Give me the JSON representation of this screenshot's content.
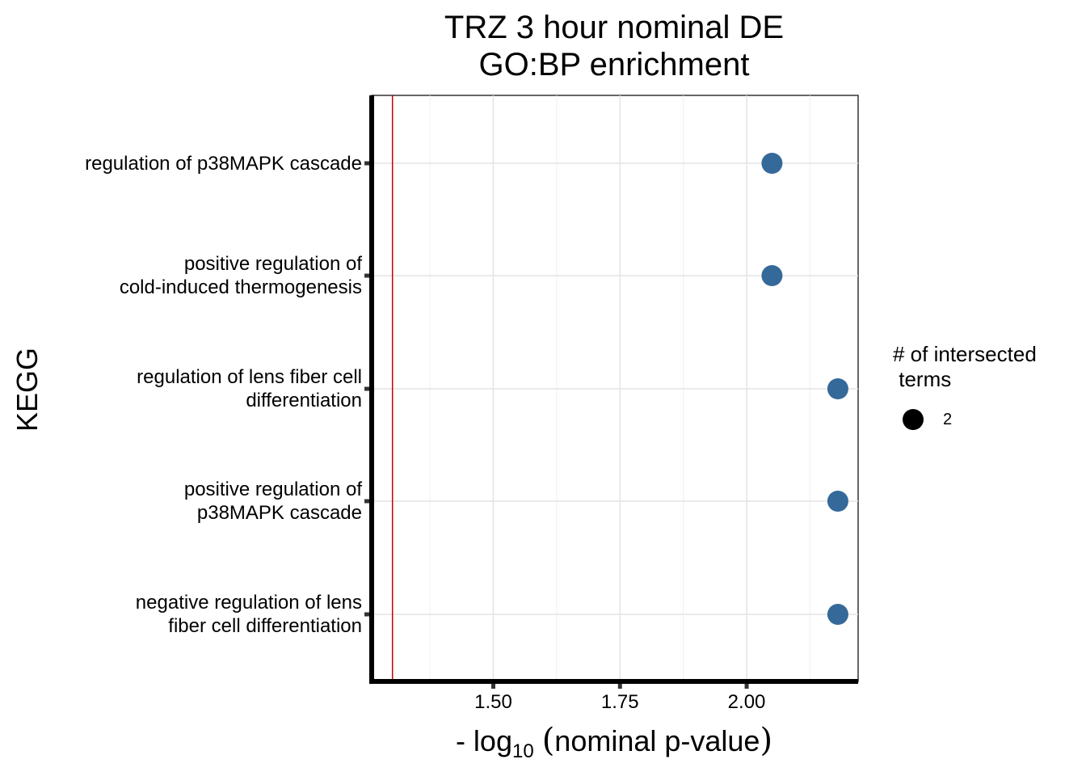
{
  "chart_data": {
    "type": "scatter",
    "title": [
      "TRZ 3 hour nominal DE",
      "GO:BP enrichment"
    ],
    "xlabel": {
      "prefix": "- log",
      "subscript": "10",
      "text": "nominal p-value"
    },
    "ylabel": "KEGG",
    "categories": [
      [
        "regulation of p38MAPK cascade"
      ],
      [
        "positive regulation of",
        "cold-induced thermogenesis"
      ],
      [
        "regulation of lens fiber cell",
        "differentiation"
      ],
      [
        "positive regulation of",
        "p38MAPK cascade"
      ],
      [
        "negative regulation of lens",
        "fiber cell differentiation"
      ]
    ],
    "series": [
      {
        "values": [
          2.05,
          2.05,
          2.18,
          2.18,
          2.18
        ]
      }
    ],
    "xlim": [
      1.26,
      2.22
    ],
    "xticks": [
      1.5,
      1.75,
      2.0
    ],
    "xtick_labels": [
      "1.50",
      "1.75",
      "2.00"
    ],
    "reference_line": 1.301,
    "point_color": "#35699a",
    "reference_line_color": "#cc0000",
    "grid": true,
    "legend": {
      "title": "# of intersected\n terms",
      "entries": [
        {
          "label": "2",
          "color": "#000000"
        }
      ],
      "position": "right"
    }
  }
}
